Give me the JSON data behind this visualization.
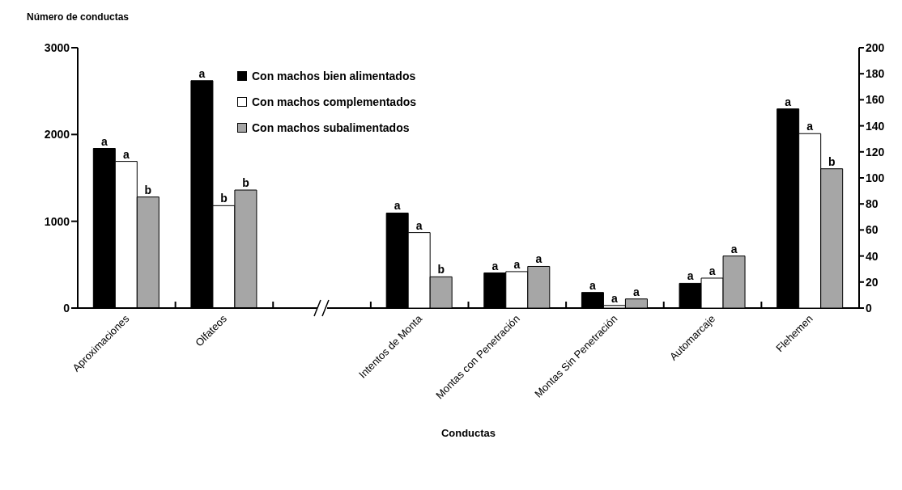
{
  "chart_data": {
    "type": "bar",
    "ylabel": "Número de conductas",
    "xlabel": "Conductas",
    "categories": [
      "Aproximaciones",
      "Olfateos",
      null,
      "Intentos de Monta",
      "Montas con Penetración",
      "Montas Sin Penetración",
      "Automarcaje",
      "Flehemen"
    ],
    "series": [
      {
        "name": "Con machos bien alimentados",
        "color": "#000000",
        "values": [
          1840,
          2620,
          null,
          null,
          null,
          null,
          null,
          null
        ],
        "value_labels": [
          "a",
          "a",
          null,
          null,
          null,
          null,
          null,
          null
        ]
      },
      {
        "name": "Con machos complementados",
        "color": "#ffffff",
        "values": [
          1690,
          1180,
          null,
          null,
          null,
          null,
          null,
          null
        ],
        "value_labels": [
          "a",
          "b",
          null,
          null,
          null,
          null,
          null,
          null
        ]
      },
      {
        "name": "Con machos subalimentados",
        "color": "#a6a6a6",
        "values": [
          1280,
          1360,
          null,
          null,
          null,
          null,
          null,
          null
        ],
        "value_labels": [
          "b",
          "b",
          null,
          null,
          null,
          null,
          null,
          null
        ]
      },
      {
        "color": "#000000",
        "axis": "y2",
        "values": [
          null,
          null,
          null,
          73,
          27,
          12,
          19,
          153
        ],
        "value_labels": [
          null,
          null,
          null,
          "a",
          "a",
          "a",
          "a",
          "a"
        ]
      },
      {
        "color": "#ffffff",
        "axis": "y2",
        "values": [
          null,
          null,
          null,
          58,
          28,
          2,
          23,
          134
        ],
        "value_labels": [
          null,
          null,
          null,
          "a",
          "a",
          "a",
          "a",
          "a"
        ]
      },
      {
        "color": "#a6a6a6",
        "axis": "y2",
        "values": [
          null,
          null,
          null,
          24,
          32,
          7,
          40,
          107
        ],
        "value_labels": [
          null,
          null,
          null,
          "b",
          "a",
          "a",
          "a",
          "b"
        ]
      }
    ],
    "ylim": [
      0,
      3000
    ],
    "yticks": [
      0,
      1000,
      2000,
      3000
    ],
    "y2lim": [
      0,
      200
    ],
    "y2ticks": [
      0,
      20,
      40,
      60,
      80,
      100,
      120,
      140,
      160,
      180,
      200
    ],
    "grid": false,
    "legend": "top"
  }
}
